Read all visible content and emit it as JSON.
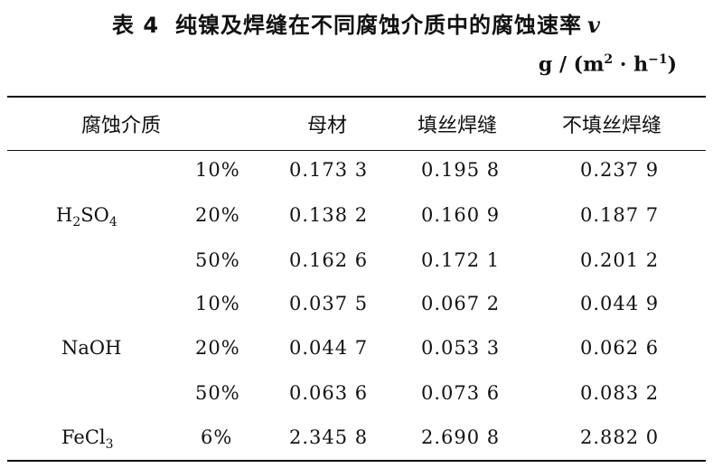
{
  "caption": {
    "number": "表 4",
    "text": "纯镍及焊缝在不同腐蚀介质中的腐蚀速率",
    "variable": "v"
  },
  "unit": {
    "prefix": "g / (m",
    "m_exp": "2",
    "mid": " · h",
    "h_exp": "−1",
    "suffix": ")"
  },
  "headers": {
    "medium": "腐蚀介质",
    "base": "母材",
    "filler": "填丝焊缝",
    "nofiller": "不填丝焊缝"
  },
  "media": {
    "h2so4": {
      "main": "H",
      "sub1": "2",
      "mid": "SO",
      "sub2": "4"
    },
    "naoh": "NaOH",
    "fecl3": {
      "main": "FeCl",
      "sub": "3"
    }
  },
  "rows": [
    {
      "conc": "10%",
      "base": "0.173 3",
      "filler": "0.195 8",
      "nofiller": "0.237 9"
    },
    {
      "conc": "20%",
      "base": "0.138 2",
      "filler": "0.160 9",
      "nofiller": "0.187 7"
    },
    {
      "conc": "50%",
      "base": "0.162 6",
      "filler": "0.172 1",
      "nofiller": "0.201 2"
    },
    {
      "conc": "10%",
      "base": "0.037 5",
      "filler": "0.067 2",
      "nofiller": "0.044 9"
    },
    {
      "conc": "20%",
      "base": "0.044 7",
      "filler": "0.053 3",
      "nofiller": "0.062 6"
    },
    {
      "conc": "50%",
      "base": "0.063 6",
      "filler": "0.073 6",
      "nofiller": "0.083 2"
    },
    {
      "conc": "6%",
      "base": "2.345 8",
      "filler": "2.690 8",
      "nofiller": "2.882 0"
    }
  ]
}
